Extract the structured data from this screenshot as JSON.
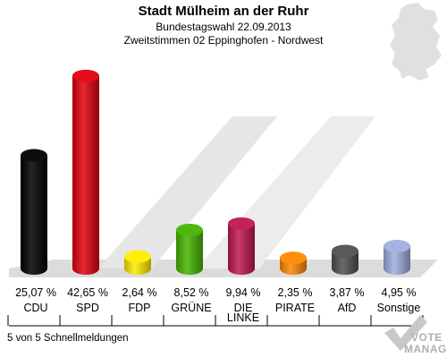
{
  "title": "Stadt Mülheim an der Ruhr",
  "subtitle1": "Bundestagswahl 22.09.2013",
  "subtitle2": "Zweitstimmen 02 Eppinghofen - Nordwest",
  "footer": "5 von 5 Schnellmeldungen",
  "logo": {
    "line1": "VOTE",
    "line2": "MANAGER"
  },
  "chart_data": {
    "type": "bar",
    "title": "Stadt Mülheim an der Ruhr",
    "categories": [
      "CDU",
      "SPD",
      "FDP",
      "GRÜNE",
      "DIE LINKE",
      "PIRATE",
      "AfD",
      "Sonstige"
    ],
    "category_lines": [
      [
        "CDU"
      ],
      [
        "SPD"
      ],
      [
        "FDP"
      ],
      [
        "GRÜNE"
      ],
      [
        "DIE",
        "LINKE"
      ],
      [
        "PIRATE"
      ],
      [
        "AfD"
      ],
      [
        "Sonstige"
      ]
    ],
    "values": [
      25.07,
      42.65,
      2.64,
      8.52,
      9.94,
      2.35,
      3.87,
      4.95
    ],
    "value_labels": [
      "25,07 %",
      "42,65 %",
      "2,64 %",
      "8,52 %",
      "9,94 %",
      "2,35 %",
      "3,87 %",
      "4,95 %"
    ],
    "colors": [
      "#000000",
      "#e3000f",
      "#ffec00",
      "#46b400",
      "#c0174e",
      "#ff8800",
      "#505050",
      "#a0aee0"
    ],
    "ylim": [
      0,
      45
    ]
  }
}
